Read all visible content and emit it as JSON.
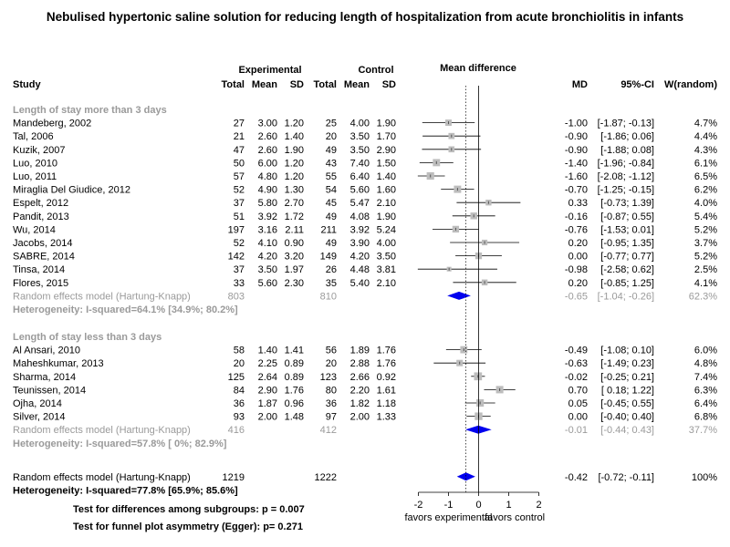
{
  "title": "Nebulised hypertonic saline solution for reducing length of hospitalization from acute bronchiolitis in infants",
  "headers": {
    "experimental": "Experimental",
    "control": "Control",
    "mean_difference": "Mean difference",
    "study": "Study",
    "total_e": "Total",
    "mean_e": "Mean",
    "sd_e": "SD",
    "total_c": "Total",
    "mean_c": "Mean",
    "sd_c": "SD",
    "md": "MD",
    "ci": "95%-CI",
    "weight": "W(random)"
  },
  "colors": {
    "box": "#bdbdbd",
    "diamond": "#0000ee",
    "subgroup_label": "#9a9a9a",
    "line": "#000000"
  },
  "chart_data": {
    "type": "forest",
    "axis": {
      "xlim": [
        -2,
        2
      ],
      "ticks": [
        "-2",
        "-1",
        "0",
        "1",
        "2"
      ],
      "left_label": "favors experimental",
      "right_label": "favors control",
      "pooled_reference": -0.42
    },
    "subgroups": [
      {
        "label": "Length of stay more than 3 days",
        "studies": [
          {
            "name": "Mandeberg, 2002",
            "ne": "27",
            "me": "3.00",
            "sde": "1.20",
            "nc": "25",
            "mc": "4.00",
            "sdc": "1.90",
            "md": -1.0,
            "lo": -1.87,
            "hi": -0.13,
            "md_text": "-1.00",
            "ci_text": "[-1.87; -0.13]",
            "weight_text": "4.7%",
            "weight": 4.7
          },
          {
            "name": "Tal, 2006",
            "ne": "21",
            "me": "2.60",
            "sde": "1.40",
            "nc": "20",
            "mc": "3.50",
            "sdc": "1.70",
            "md": -0.9,
            "lo": -1.86,
            "hi": 0.06,
            "md_text": "-0.90",
            "ci_text": "[-1.86; 0.06]",
            "weight_text": "4.4%",
            "weight": 4.4
          },
          {
            "name": "Kuzik, 2007",
            "ne": "47",
            "me": "2.60",
            "sde": "1.90",
            "nc": "49",
            "mc": "3.50",
            "sdc": "2.90",
            "md": -0.9,
            "lo": -1.88,
            "hi": 0.08,
            "md_text": "-0.90",
            "ci_text": "[-1.88; 0.08]",
            "weight_text": "4.3%",
            "weight": 4.3
          },
          {
            "name": "Luo, 2010",
            "ne": "50",
            "me": "6.00",
            "sde": "1.20",
            "nc": "43",
            "mc": "7.40",
            "sdc": "1.50",
            "md": -1.4,
            "lo": -1.96,
            "hi": -0.84,
            "md_text": "-1.40",
            "ci_text": "[-1.96; -0.84]",
            "weight_text": "6.1%",
            "weight": 6.1
          },
          {
            "name": "Luo, 2011",
            "ne": "57",
            "me": "4.80",
            "sde": "1.20",
            "nc": "55",
            "mc": "6.40",
            "sdc": "1.40",
            "md": -1.6,
            "lo": -2.08,
            "hi": -1.12,
            "md_text": "-1.60",
            "ci_text": "[-2.08; -1.12]",
            "weight_text": "6.5%",
            "weight": 6.5
          },
          {
            "name": "Miraglia Del Giudice, 2012",
            "ne": "52",
            "me": "4.90",
            "sde": "1.30",
            "nc": "54",
            "mc": "5.60",
            "sdc": "1.60",
            "md": -0.7,
            "lo": -1.25,
            "hi": -0.15,
            "md_text": "-0.70",
            "ci_text": "[-1.25; -0.15]",
            "weight_text": "6.2%",
            "weight": 6.2
          },
          {
            "name": "Espelt, 2012",
            "ne": "37",
            "me": "5.80",
            "sde": "2.70",
            "nc": "45",
            "mc": "5.47",
            "sdc": "2.10",
            "md": 0.33,
            "lo": -0.73,
            "hi": 1.39,
            "md_text": "0.33",
            "ci_text": "[-0.73; 1.39]",
            "weight_text": "4.0%",
            "weight": 4.0
          },
          {
            "name": "Pandit, 2013",
            "ne": "51",
            "me": "3.92",
            "sde": "1.72",
            "nc": "49",
            "mc": "4.08",
            "sdc": "1.90",
            "md": -0.16,
            "lo": -0.87,
            "hi": 0.55,
            "md_text": "-0.16",
            "ci_text": "[-0.87; 0.55]",
            "weight_text": "5.4%",
            "weight": 5.4
          },
          {
            "name": "Wu, 2014",
            "ne": "197",
            "me": "3.16",
            "sde": "2.11",
            "nc": "211",
            "mc": "3.92",
            "sdc": "5.24",
            "md": -0.76,
            "lo": -1.53,
            "hi": 0.01,
            "md_text": "-0.76",
            "ci_text": "[-1.53; 0.01]",
            "weight_text": "5.2%",
            "weight": 5.2
          },
          {
            "name": "Jacobs, 2014",
            "ne": "52",
            "me": "4.10",
            "sde": "0.90",
            "nc": "49",
            "mc": "3.90",
            "sdc": "4.00",
            "md": 0.2,
            "lo": -0.95,
            "hi": 1.35,
            "md_text": "0.20",
            "ci_text": "[-0.95; 1.35]",
            "weight_text": "3.7%",
            "weight": 3.7
          },
          {
            "name": "SABRE, 2014",
            "ne": "142",
            "me": "4.20",
            "sde": "3.20",
            "nc": "149",
            "mc": "4.20",
            "sdc": "3.50",
            "md": 0.0,
            "lo": -0.77,
            "hi": 0.77,
            "md_text": "0.00",
            "ci_text": "[-0.77; 0.77]",
            "weight_text": "5.2%",
            "weight": 5.2
          },
          {
            "name": "Tinsa, 2014",
            "ne": "37",
            "me": "3.50",
            "sde": "1.97",
            "nc": "26",
            "mc": "4.48",
            "sdc": "3.81",
            "md": -0.98,
            "lo": -2.58,
            "hi": 0.62,
            "md_text": "-0.98",
            "ci_text": "[-2.58; 0.62]",
            "weight_text": "2.5%",
            "weight": 2.5
          },
          {
            "name": "Flores, 2015",
            "ne": "33",
            "me": "5.60",
            "sde": "2.30",
            "nc": "35",
            "mc": "5.40",
            "sdc": "2.10",
            "md": 0.2,
            "lo": -0.85,
            "hi": 1.25,
            "md_text": "0.20",
            "ci_text": "[-0.85; 1.25]",
            "weight_text": "4.1%",
            "weight": 4.1
          }
        ],
        "pooled": {
          "label": "Random effects model  (Hartung-Knapp)",
          "ne": "803",
          "nc": "810",
          "md": -0.65,
          "lo": -1.04,
          "hi": -0.26,
          "md_text": "-0.65",
          "ci_text": "[-1.04; -0.26]",
          "weight_text": "62.3%"
        },
        "heterogeneity": "Heterogeneity: I-squared=64.1% [34.9%; 80.2%]"
      },
      {
        "label": "Length of stay less than 3 days",
        "studies": [
          {
            "name": "Al Ansari, 2010",
            "ne": "58",
            "me": "1.40",
            "sde": "1.41",
            "nc": "56",
            "mc": "1.89",
            "sdc": "1.76",
            "md": -0.49,
            "lo": -1.08,
            "hi": 0.1,
            "md_text": "-0.49",
            "ci_text": "[-1.08; 0.10]",
            "weight_text": "6.0%",
            "weight": 6.0
          },
          {
            "name": "Maheshkumar, 2013",
            "ne": "20",
            "me": "2.25",
            "sde": "0.89",
            "nc": "20",
            "mc": "2.88",
            "sdc": "1.76",
            "md": -0.63,
            "lo": -1.49,
            "hi": 0.23,
            "md_text": "-0.63",
            "ci_text": "[-1.49; 0.23]",
            "weight_text": "4.8%",
            "weight": 4.8
          },
          {
            "name": "Sharma, 2014",
            "ne": "125",
            "me": "2.64",
            "sde": "0.89",
            "nc": "123",
            "mc": "2.66",
            "sdc": "0.92",
            "md": -0.02,
            "lo": -0.25,
            "hi": 0.21,
            "md_text": "-0.02",
            "ci_text": "[-0.25; 0.21]",
            "weight_text": "7.4%",
            "weight": 7.4
          },
          {
            "name": "Teunissen, 2014",
            "ne": "84",
            "me": "2.90",
            "sde": "1.76",
            "nc": "80",
            "mc": "2.20",
            "sdc": "1.61",
            "md": 0.7,
            "lo": 0.18,
            "hi": 1.22,
            "md_text": "0.70",
            "ci_text": "[ 0.18; 1.22]",
            "weight_text": "6.3%",
            "weight": 6.3
          },
          {
            "name": "Ojha, 2014",
            "ne": "36",
            "me": "1.87",
            "sde": "0.96",
            "nc": "36",
            "mc": "1.82",
            "sdc": "1.18",
            "md": 0.05,
            "lo": -0.45,
            "hi": 0.55,
            "md_text": "0.05",
            "ci_text": "[-0.45; 0.55]",
            "weight_text": "6.4%",
            "weight": 6.4
          },
          {
            "name": "Silver, 2014",
            "ne": "93",
            "me": "2.00",
            "sde": "1.48",
            "nc": "97",
            "mc": "2.00",
            "sdc": "1.33",
            "md": 0.0,
            "lo": -0.4,
            "hi": 0.4,
            "md_text": "0.00",
            "ci_text": "[-0.40; 0.40]",
            "weight_text": "6.8%",
            "weight": 6.8
          }
        ],
        "pooled": {
          "label": "Random effects model  (Hartung-Knapp)",
          "ne": "416",
          "nc": "412",
          "md": -0.01,
          "lo": -0.44,
          "hi": 0.43,
          "md_text": "-0.01",
          "ci_text": "[-0.44; 0.43]",
          "weight_text": "37.7%"
        },
        "heterogeneity": "Heterogeneity: I-squared=57.8% [  0%; 82.9%]"
      }
    ],
    "overall": {
      "label": "Random effects model  (Hartung-Knapp)",
      "ne": "1219",
      "nc": "1222",
      "md": -0.42,
      "lo": -0.72,
      "hi": -0.11,
      "md_text": "-0.42",
      "ci_text": "[-0.72; -0.11]",
      "weight_text": "100%"
    },
    "overall_heterogeneity": "Heterogeneity: I-squared=77.8% [65.9%; 85.6%]",
    "tests": [
      "Test for differences among subgroups: p = 0.007",
      "Test for funnel plot asymmetry (Egger): p= 0.271"
    ]
  }
}
